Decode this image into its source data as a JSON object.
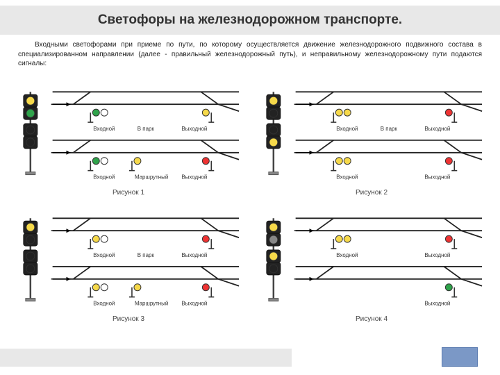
{
  "title": "Светофоры на железнодорожном транспорте.",
  "intro": "Входными светофорами при приеме по пути, по которому осуществляется движение железнодорожного подвижного состава в специализированном направлении (далее - правильный железнодорожный путь), и неправильному железнодорожному пути подаются сигналы:",
  "figures": [
    {
      "caption": "Рисунок 1",
      "signal_head": [
        {
          "fill": "#f6d94a",
          "stroke": "#333"
        },
        {
          "fill": "#2fa34b",
          "stroke": "#333"
        },
        {
          "fill": "#222",
          "stroke": "#333"
        },
        {
          "fill": "#222",
          "stroke": "#333"
        }
      ],
      "tracks": {
        "top": {
          "label_left": "Входной",
          "left_lights": [
            "#2fa34b",
            "#fff"
          ],
          "label_right": "Выходной",
          "right_lights": [
            "#f6d94a"
          ]
        },
        "bottom": {
          "label_left": "Входной",
          "left_lights": [
            "#2fa34b",
            "#fff"
          ],
          "mid_label": "Маршрутный",
          "mid_lights": [
            "#f6d94a"
          ],
          "label_right": "Выходной",
          "right_lights": [
            "#e33"
          ],
          "vpark": "В парк"
        }
      }
    },
    {
      "caption": "Рисунок 2",
      "signal_head": [
        {
          "fill": "#f6d94a",
          "stroke": "#333"
        },
        {
          "fill": "#222",
          "stroke": "#333"
        },
        {
          "fill": "#222",
          "stroke": "#333"
        },
        {
          "fill": "#f6d94a",
          "stroke": "#333"
        }
      ],
      "tracks": {
        "top": {
          "label_left": "Входной",
          "left_lights": [
            "#f6d94a",
            "#f6d94a"
          ],
          "label_right": "Выходной",
          "right_lights": [
            "#e33"
          ]
        },
        "bottom": {
          "label_left": "Входной",
          "left_lights": [
            "#f6d94a",
            "#f6d94a"
          ],
          "label_right": "Выходной",
          "right_lights": [
            "#e33"
          ],
          "vpark": "В парк"
        }
      }
    },
    {
      "caption": "Рисунок 3",
      "signal_head": [
        {
          "fill": "#f6d94a",
          "stroke": "#333"
        },
        {
          "fill": "#222",
          "stroke": "#333"
        },
        {
          "fill": "#222",
          "stroke": "#333"
        },
        {
          "fill": "#222",
          "stroke": "#333"
        }
      ],
      "tracks": {
        "top": {
          "label_left": "Входной",
          "left_lights": [
            "#f6d94a",
            "#fff"
          ],
          "label_right": "Выходной",
          "right_lights": [
            "#e33"
          ]
        },
        "bottom": {
          "label_left": "Входной",
          "left_lights": [
            "#f6d94a",
            "#fff"
          ],
          "mid_label": "Маршрутный",
          "mid_lights": [
            "#f6d94a"
          ],
          "label_right": "Выходной",
          "right_lights": [
            "#e33"
          ],
          "vpark": "В парк"
        }
      }
    },
    {
      "caption": "Рисунок 4",
      "signal_head": [
        {
          "fill": "#f6d94a",
          "stroke": "#333"
        },
        {
          "fill": "#878787",
          "stroke": "#333"
        },
        {
          "fill": "#f6d94a",
          "stroke": "#333"
        },
        {
          "fill": "#222",
          "stroke": "#333"
        }
      ],
      "tracks": {
        "top": {
          "label_left": "Входной",
          "left_lights": [
            "#f6d94a",
            "#f6d94a"
          ],
          "label_right": "Выходной",
          "right_lights": [
            "#e33"
          ]
        },
        "bottom": {
          "label_left": "",
          "left_lights": [],
          "label_right": "Выходной",
          "right_lights": [
            "#2fa34b"
          ],
          "vpark": ""
        }
      }
    }
  ],
  "colors": {
    "track": "#222",
    "head_bg": "#222",
    "gray_box": "#e8e8e8",
    "blue_box": "#7b98c6"
  }
}
